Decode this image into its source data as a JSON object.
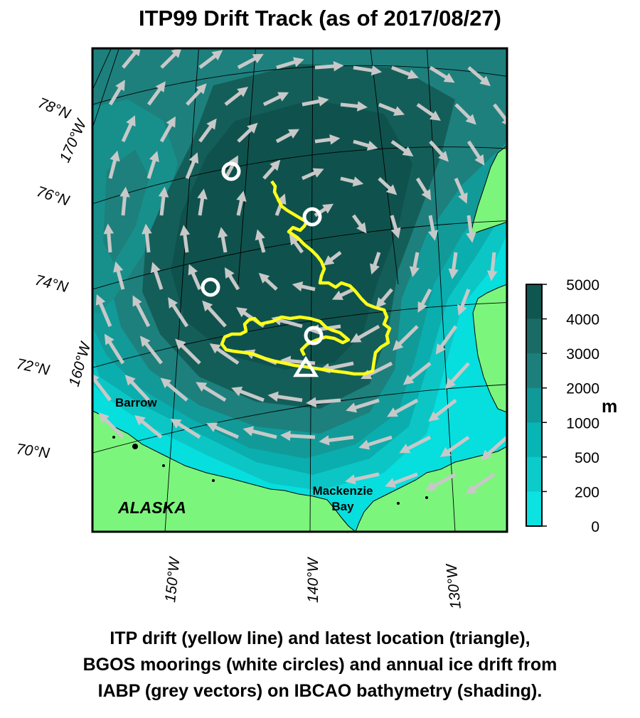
{
  "title": "ITP99 Drift Track (as of 2017/08/27)",
  "map": {
    "latitude_labels": [
      "78°N",
      "76°N",
      "74°N",
      "72°N",
      "70°N"
    ],
    "longitude_labels_left": [
      "170°W",
      "160°W"
    ],
    "longitude_labels_bottom": [
      "150°W",
      "140°W",
      "130°W"
    ],
    "place_labels": {
      "barrow": "Barrow",
      "alaska": "ALASKA",
      "mackenzie_line1": "Mackenzie",
      "mackenzie_line2": "Bay"
    },
    "colors": {
      "land": "#7cf57c",
      "drift_track": "#ffff1a",
      "ice_vectors": "#c8c8c8",
      "moorings": "#ffffff"
    }
  },
  "colorbar": {
    "ticks": [
      "5000",
      "4000",
      "3000",
      "2000",
      "1000",
      "500",
      "200",
      "0"
    ],
    "unit": "m",
    "colors": [
      "#0f5650",
      "#1a6b66",
      "#1d7f7c",
      "#0f9999",
      "#07b5b5",
      "#0ccbcb",
      "#0ce2e2"
    ]
  },
  "caption": {
    "line1": "ITP drift (yellow line) and latest location (triangle),",
    "line2": "BGOS moorings (white circles) and annual ice drift from",
    "line3": "IABP (grey vectors) on IBCAO bathymetry (shading)."
  }
}
